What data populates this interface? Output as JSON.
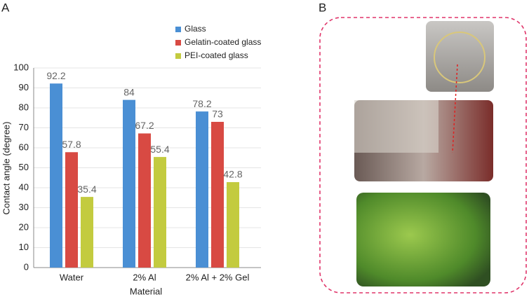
{
  "panels": [
    "A",
    "B"
  ],
  "chart_data": {
    "type": "bar",
    "xlabel": "Material",
    "ylabel": "Contact angle (degree)",
    "categories": [
      "Water",
      "2% Al",
      "2% Al + 2% Gel"
    ],
    "series": [
      {
        "name": "Glass",
        "color": "#4a8fd4",
        "values": [
          92.2,
          84,
          78.2
        ]
      },
      {
        "name": "Gelatin-coated glass",
        "color": "#d84a43",
        "values": [
          57.8,
          67.2,
          73
        ]
      },
      {
        "name": "PEI-coated glass",
        "color": "#c3cb3f",
        "values": [
          35.4,
          55.4,
          42.8
        ]
      }
    ],
    "ylim": [
      0,
      100
    ],
    "yticks": [
      0,
      10,
      20,
      30,
      40,
      50,
      60,
      70,
      80,
      90,
      100
    ],
    "grid": true
  }
}
